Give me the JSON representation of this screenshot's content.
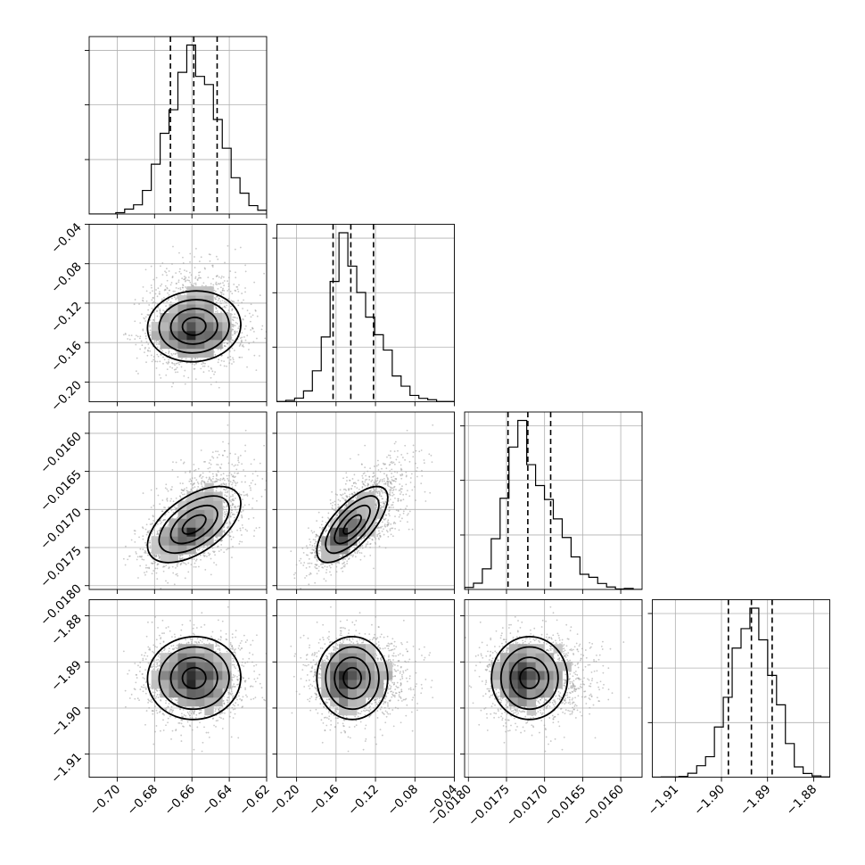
{
  "chart_data": {
    "type": "corner",
    "parameters": [
      {
        "range": [
          -0.715,
          -0.62
        ],
        "ticks": [
          -0.7,
          -0.68,
          -0.66,
          -0.64,
          -0.62
        ],
        "tick_labels": [
          "−0.70",
          "−0.68",
          "−0.66",
          "−0.64",
          "−0.62"
        ],
        "median": -0.659,
        "sigma": 0.0125,
        "skew": 0.1,
        "quantiles": [
          -0.6715,
          -0.659,
          -0.6465
        ]
      },
      {
        "range": [
          -0.22,
          -0.04
        ],
        "ticks": [
          -0.2,
          -0.16,
          -0.12,
          -0.08,
          -0.04
        ],
        "tick_labels": [
          "−0.20",
          "−0.16",
          "−0.12",
          "−0.08",
          "−0.04"
        ],
        "median": -0.145,
        "sigma": 0.018,
        "skew": 0.55,
        "quantiles": [
          -0.163,
          -0.145,
          -0.122
        ]
      },
      {
        "range": [
          -0.01805,
          -0.01572
        ],
        "ticks": [
          -0.018,
          -0.0175,
          -0.017,
          -0.0165,
          -0.016
        ],
        "tick_labels": [
          "−0.0180",
          "−0.0175",
          "−0.0170",
          "−0.0165",
          "−0.0160"
        ],
        "median": -0.01722,
        "sigma": 0.00025,
        "skew": 0.6,
        "quantiles": [
          -0.01748,
          -0.01722,
          -0.01692
        ]
      },
      {
        "range": [
          -1.915,
          -1.8765
        ],
        "ticks": [
          -1.91,
          -1.9,
          -1.89,
          -1.88
        ],
        "tick_labels": [
          "−1.91",
          "−1.90",
          "−1.89",
          "−1.88"
        ],
        "median": -1.8935,
        "sigma": 0.0045,
        "skew": 0.0,
        "quantiles": [
          -1.8985,
          -1.8935,
          -1.889
        ]
      }
    ],
    "correlations": [
      [
        1.0,
        0.05,
        0.55,
        0.02
      ],
      [
        0.05,
        1.0,
        0.7,
        0.0
      ],
      [
        0.55,
        0.7,
        1.0,
        0.0
      ],
      [
        0.02,
        0.0,
        0.0,
        1.0
      ]
    ],
    "contour_levels": [
      0.118,
      0.393,
      0.675,
      0.864
    ],
    "quantile_style": "dashed",
    "grid": true,
    "colors": {
      "contour": "#000000",
      "samples": "#9a9a9a",
      "density": "#000000"
    }
  }
}
